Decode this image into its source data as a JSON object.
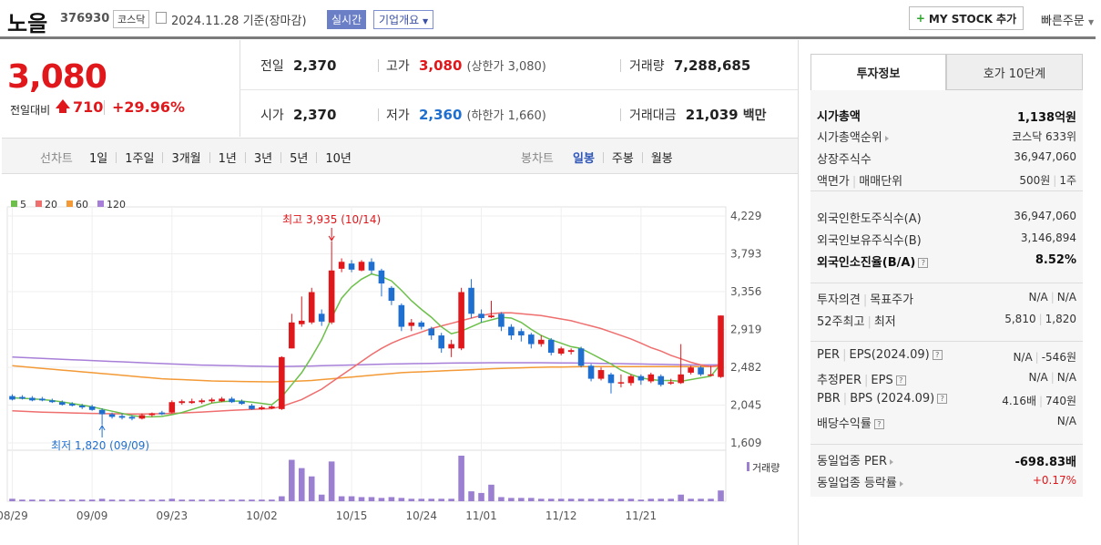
{
  "header": {
    "name": "노을",
    "code": "376930",
    "market": "코스닥",
    "date": "2024.11.28",
    "date_suffix": "기준(장마감)",
    "realtime": "실시간",
    "company": "기업개요",
    "mystock": "MY STOCK 추가",
    "quick_order": "빠른주문"
  },
  "quote": {
    "price": "3,080",
    "prev_label": "전일대비",
    "change": "710",
    "change_pct": "+29.96%",
    "prev_close_label": "전일",
    "prev_close": "2,370",
    "high_label": "고가",
    "high": "3,080",
    "upper_limit": "(상한가 3,080)",
    "volume_label": "거래량",
    "volume": "7,288,685",
    "open_label": "시가",
    "open": "2,370",
    "low_label": "저가",
    "low": "2,360",
    "lower_limit": "(하한가 1,660)",
    "amount_label": "거래대금",
    "amount": "21,039",
    "amount_unit": "백만"
  },
  "period_bar": {
    "line_label": "선차트",
    "periods": [
      "1일",
      "1주일",
      "3개월",
      "1년",
      "3년",
      "5년",
      "10년"
    ],
    "candle_label": "봉차트",
    "candles": [
      "일봉",
      "주봉",
      "월봉"
    ],
    "active_candle": "일봉"
  },
  "colors": {
    "up": "#e0171b",
    "down": "#1e6fd0",
    "ma5": "#6cc04a",
    "ma20": "#ef6e6e",
    "ma60": "#f39a36",
    "ma120": "#a77fd8",
    "volume": "#9b7fd1"
  },
  "chart_data": {
    "type": "candlestick",
    "legend": [
      {
        "label": "5",
        "color": "#6cc04a"
      },
      {
        "label": "20",
        "color": "#ef6e6e"
      },
      {
        "label": "60",
        "color": "#f39a36"
      },
      {
        "label": "120",
        "color": "#a77fd8"
      }
    ],
    "y_ticks": [
      "4,229",
      "3,793",
      "3,356",
      "2,919",
      "2,482",
      "2,045",
      "1,609"
    ],
    "ylim": [
      1609,
      4229
    ],
    "x_ticks": [
      "08/29",
      "09/09",
      "09/23",
      "10/02",
      "10/15",
      "10/24",
      "11/01",
      "11/12",
      "11/21"
    ],
    "annotation_high": "최고 3,935 (10/14)",
    "annotation_low": "최저 1,820 (09/09)",
    "volume_label": "거래량",
    "candles": [
      {
        "o": 2150,
        "c": 2110,
        "h": 2170,
        "l": 2100
      },
      {
        "o": 2140,
        "c": 2120,
        "h": 2160,
        "l": 2110
      },
      {
        "o": 2130,
        "c": 2100,
        "h": 2150,
        "l": 2090
      },
      {
        "o": 2120,
        "c": 2100,
        "h": 2140,
        "l": 2090
      },
      {
        "o": 2100,
        "c": 2080,
        "h": 2120,
        "l": 2070
      },
      {
        "o": 2080,
        "c": 2050,
        "h": 2100,
        "l": 2040
      },
      {
        "o": 2060,
        "c": 2040,
        "h": 2080,
        "l": 2030
      },
      {
        "o": 2040,
        "c": 2020,
        "h": 2060,
        "l": 2000
      },
      {
        "o": 2030,
        "c": 1990,
        "h": 2050,
        "l": 1980
      },
      {
        "o": 1990,
        "c": 1940,
        "h": 2010,
        "l": 1820
      },
      {
        "o": 1940,
        "c": 1910,
        "h": 1960,
        "l": 1890
      },
      {
        "o": 1920,
        "c": 1900,
        "h": 1950,
        "l": 1880
      },
      {
        "o": 1910,
        "c": 1890,
        "h": 1930,
        "l": 1870
      },
      {
        "o": 1890,
        "c": 1930,
        "h": 1950,
        "l": 1880
      },
      {
        "o": 1930,
        "c": 1950,
        "h": 1960,
        "l": 1910
      },
      {
        "o": 1960,
        "c": 1940,
        "h": 1980,
        "l": 1930
      },
      {
        "o": 1960,
        "c": 2080,
        "h": 2100,
        "l": 1950
      },
      {
        "o": 2070,
        "c": 2090,
        "h": 2110,
        "l": 2050
      },
      {
        "o": 2070,
        "c": 2090,
        "h": 2120,
        "l": 2060
      },
      {
        "o": 2080,
        "c": 2100,
        "h": 2120,
        "l": 2060
      },
      {
        "o": 2090,
        "c": 2110,
        "h": 2130,
        "l": 2070
      },
      {
        "o": 2090,
        "c": 2120,
        "h": 2140,
        "l": 2080
      },
      {
        "o": 2120,
        "c": 2080,
        "h": 2140,
        "l": 2070
      },
      {
        "o": 2090,
        "c": 2060,
        "h": 2110,
        "l": 2050
      },
      {
        "o": 2040,
        "c": 2000,
        "h": 2060,
        "l": 1990
      },
      {
        "o": 2000,
        "c": 2020,
        "h": 2040,
        "l": 1990
      },
      {
        "o": 2010,
        "c": 2030,
        "h": 2040,
        "l": 2000
      },
      {
        "o": 2000,
        "c": 2600,
        "h": 2610,
        "l": 1990
      },
      {
        "o": 2700,
        "c": 3000,
        "h": 3100,
        "l": 2700
      },
      {
        "o": 2980,
        "c": 3020,
        "h": 3300,
        "l": 2950
      },
      {
        "o": 3000,
        "c": 3350,
        "h": 3400,
        "l": 2980
      },
      {
        "o": 3100,
        "c": 3010,
        "h": 3150,
        "l": 2960
      },
      {
        "o": 3000,
        "c": 3600,
        "h": 3935,
        "l": 2980
      },
      {
        "o": 3620,
        "c": 3700,
        "h": 3740,
        "l": 3580
      },
      {
        "o": 3680,
        "c": 3610,
        "h": 3720,
        "l": 3580
      },
      {
        "o": 3600,
        "c": 3700,
        "h": 3720,
        "l": 3590
      },
      {
        "o": 3700,
        "c": 3600,
        "h": 3740,
        "l": 3560
      },
      {
        "o": 3600,
        "c": 3450,
        "h": 3620,
        "l": 3300
      },
      {
        "o": 3400,
        "c": 3250,
        "h": 3420,
        "l": 3200
      },
      {
        "o": 3200,
        "c": 2950,
        "h": 3220,
        "l": 2900
      },
      {
        "o": 2960,
        "c": 3000,
        "h": 3040,
        "l": 2900
      },
      {
        "o": 3000,
        "c": 2950,
        "h": 3020,
        "l": 2920
      },
      {
        "o": 2930,
        "c": 2850,
        "h": 2950,
        "l": 2800
      },
      {
        "o": 2850,
        "c": 2700,
        "h": 2880,
        "l": 2650
      },
      {
        "o": 2700,
        "c": 2750,
        "h": 2800,
        "l": 2600
      },
      {
        "o": 2700,
        "c": 3350,
        "h": 3400,
        "l": 2680
      },
      {
        "o": 3400,
        "c": 3100,
        "h": 3500,
        "l": 3050
      },
      {
        "o": 3100,
        "c": 3050,
        "h": 3150,
        "l": 3000
      },
      {
        "o": 3060,
        "c": 3080,
        "h": 3250,
        "l": 3050
      },
      {
        "o": 3100,
        "c": 2950,
        "h": 3120,
        "l": 2900
      },
      {
        "o": 2950,
        "c": 2850,
        "h": 2980,
        "l": 2800
      },
      {
        "o": 2900,
        "c": 2850,
        "h": 2930,
        "l": 2780
      },
      {
        "o": 2860,
        "c": 2750,
        "h": 2880,
        "l": 2700
      },
      {
        "o": 2750,
        "c": 2800,
        "h": 2850,
        "l": 2720
      },
      {
        "o": 2800,
        "c": 2650,
        "h": 2820,
        "l": 2620
      },
      {
        "o": 2640,
        "c": 2700,
        "h": 2720,
        "l": 2620
      },
      {
        "o": 2660,
        "c": 2680,
        "h": 2700,
        "l": 2630
      },
      {
        "o": 2700,
        "c": 2500,
        "h": 2720,
        "l": 2480
      },
      {
        "o": 2500,
        "c": 2350,
        "h": 2520,
        "l": 2320
      },
      {
        "o": 2350,
        "c": 2450,
        "h": 2480,
        "l": 2330
      },
      {
        "o": 2400,
        "c": 2300,
        "h": 2420,
        "l": 2180
      },
      {
        "o": 2300,
        "c": 2310,
        "h": 2400,
        "l": 2250
      },
      {
        "o": 2300,
        "c": 2380,
        "h": 2400,
        "l": 2270
      },
      {
        "o": 2380,
        "c": 2330,
        "h": 2400,
        "l": 2280
      },
      {
        "o": 2320,
        "c": 2400,
        "h": 2420,
        "l": 2300
      },
      {
        "o": 2380,
        "c": 2280,
        "h": 2400,
        "l": 2260
      },
      {
        "o": 2300,
        "c": 2310,
        "h": 2350,
        "l": 2280
      },
      {
        "o": 2300,
        "c": 2400,
        "h": 2750,
        "l": 2290
      },
      {
        "o": 2420,
        "c": 2480,
        "h": 2500,
        "l": 2400
      },
      {
        "o": 2480,
        "c": 2400,
        "h": 2500,
        "l": 2380
      },
      {
        "o": 2400,
        "c": 2400,
        "h": 2500,
        "l": 2380
      },
      {
        "o": 2370,
        "c": 3080,
        "h": 3080,
        "l": 2360
      }
    ],
    "volumes": [
      3,
      2,
      2,
      2,
      2,
      2,
      2,
      2,
      2,
      3,
      2,
      2,
      2,
      2,
      2,
      2,
      3,
      2,
      2,
      2,
      2,
      2,
      2,
      2,
      2,
      2,
      2,
      6,
      50,
      40,
      30,
      8,
      48,
      6,
      6,
      5,
      5,
      4,
      5,
      4,
      3,
      3,
      3,
      3,
      3,
      55,
      12,
      10,
      20,
      5,
      4,
      4,
      4,
      3,
      3,
      3,
      3,
      3,
      3,
      3,
      3,
      3,
      3,
      2,
      3,
      3,
      3,
      8,
      3,
      3,
      3,
      13
    ],
    "ma5": [
      2130,
      2125,
      2118,
      2110,
      2098,
      2082,
      2064,
      2046,
      2026,
      2000,
      1975,
      1950,
      1925,
      1912,
      1910,
      1915,
      1935,
      1960,
      1995,
      2030,
      2070,
      2085,
      2092,
      2092,
      2080,
      2066,
      2050,
      2140,
      2280,
      2420,
      2600,
      2800,
      3050,
      3280,
      3410,
      3500,
      3560,
      3530,
      3480,
      3370,
      3250,
      3150,
      3060,
      2950,
      2870,
      2900,
      2950,
      3000,
      3030,
      3060,
      3050,
      3000,
      2920,
      2850,
      2800,
      2760,
      2720,
      2700,
      2640,
      2580,
      2520,
      2450,
      2400,
      2360,
      2340,
      2330,
      2330,
      2320,
      2340,
      2360,
      2380,
      2520
    ],
    "ma20": [
      1980,
      1975,
      1970,
      1965,
      1962,
      1958,
      1955,
      1952,
      1950,
      1948,
      1946,
      1945,
      1944,
      1944,
      1945,
      1947,
      1950,
      1955,
      1960,
      1966,
      1972,
      1978,
      1985,
      1990,
      1995,
      2000,
      2005,
      2030,
      2070,
      2110,
      2170,
      2230,
      2310,
      2390,
      2470,
      2550,
      2630,
      2700,
      2760,
      2810,
      2850,
      2890,
      2930,
      2960,
      2990,
      3020,
      3050,
      3080,
      3100,
      3110,
      3110,
      3100,
      3090,
      3080,
      3060,
      3040,
      3020,
      2990,
      2960,
      2930,
      2890,
      2850,
      2810,
      2760,
      2710,
      2670,
      2620,
      2580,
      2540,
      2510,
      2490,
      2510
    ],
    "ma60": [
      2500,
      2490,
      2480,
      2470,
      2460,
      2450,
      2440,
      2430,
      2420,
      2410,
      2400,
      2390,
      2380,
      2370,
      2360,
      2350,
      2345,
      2340,
      2335,
      2330,
      2325,
      2322,
      2320,
      2318,
      2316,
      2315,
      2314,
      2316,
      2320,
      2325,
      2330,
      2340,
      2350,
      2360,
      2370,
      2380,
      2390,
      2400,
      2410,
      2420,
      2425,
      2430,
      2435,
      2440,
      2445,
      2450,
      2455,
      2460,
      2465,
      2470,
      2473,
      2476,
      2479,
      2482,
      2484,
      2486,
      2488,
      2490,
      2490,
      2490,
      2490,
      2490,
      2490,
      2490,
      2490,
      2490,
      2490,
      2490,
      2490,
      2490,
      2490,
      2495
    ],
    "ma120": [
      2600,
      2595,
      2590,
      2585,
      2580,
      2575,
      2570,
      2565,
      2560,
      2555,
      2550,
      2545,
      2540,
      2535,
      2530,
      2525,
      2520,
      2516,
      2512,
      2508,
      2505,
      2502,
      2500,
      2498,
      2496,
      2494,
      2492,
      2492,
      2493,
      2495,
      2497,
      2500,
      2503,
      2506,
      2509,
      2512,
      2515,
      2518,
      2520,
      2522,
      2524,
      2526,
      2528,
      2530,
      2531,
      2532,
      2533,
      2534,
      2535,
      2535,
      2535,
      2535,
      2535,
      2535,
      2534,
      2533,
      2532,
      2531,
      2530,
      2528,
      2526,
      2524,
      2522,
      2520,
      2518,
      2516,
      2514,
      2512,
      2510,
      2510,
      2510,
      2512
    ]
  },
  "right_panel": {
    "tabs": [
      "투자정보",
      "호가 10단계"
    ],
    "market_cap_label": "시가총액",
    "market_cap": "1,138억원",
    "market_cap_rank_label": "시가총액순위",
    "market_cap_rank": "코스닥 633위",
    "listed_shares_label": "상장주식수",
    "listed_shares": "36,947,060",
    "face_label": "액면가",
    "unit_label": "매매단위",
    "face": "500원",
    "unit": "1주",
    "foreign_limit_label": "외국인한도주식수(A)",
    "foreign_limit": "36,947,060",
    "foreign_hold_label": "외국인보유주식수(B)",
    "foreign_hold": "3,146,894",
    "foreign_ratio_label": "외국인소진율(B/A)",
    "foreign_ratio": "8.52%",
    "opinion_label": "투자의견",
    "target_label": "목표주가",
    "opinion": "N/A",
    "target": "N/A",
    "w52_high_label": "52주최고",
    "w52_low_label": "최저",
    "w52_high": "5,810",
    "w52_low": "1,820",
    "per_label": "PER",
    "eps_label": "EPS(2024.09)",
    "per": "N/A",
    "eps": "-546원",
    "est_per_label": "추정PER",
    "est_eps_label": "EPS",
    "est_per": "N/A",
    "est_eps": "N/A",
    "pbr_label": "PBR",
    "bps_label": "BPS (2024.09)",
    "pbr": "4.16배",
    "bps": "740원",
    "dividend_label": "배당수익률",
    "dividend": "N/A",
    "sector_per_label": "동일업종 PER",
    "sector_per": "-698.83배",
    "sector_rate_label": "동일업종 등락률",
    "sector_rate": "+0.17%"
  }
}
